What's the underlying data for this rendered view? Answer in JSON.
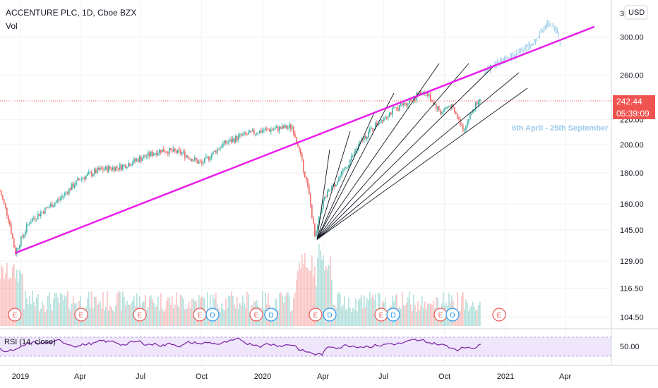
{
  "header": {
    "title": "ACCENTURE PLC, 1D, Cboe BZX",
    "volume_label": "Vol",
    "currency_button": "USD",
    "top_cut_label": "3"
  },
  "price_axis": {
    "ticks": [
      "300.00",
      "260.00",
      "220.00",
      "200.00",
      "180.00",
      "160.00",
      "145.00",
      "129.00",
      "116.50",
      "104.50"
    ],
    "scale": "log",
    "range": [
      100,
      345
    ],
    "last_price": "242.44",
    "countdown": "05:39:09",
    "last_price_color": "#ef5350"
  },
  "time_axis": {
    "ticks": [
      "2019",
      "Apr",
      "Jul",
      "Oct",
      "2020",
      "Apr",
      "Jul",
      "Oct",
      "2021",
      "Apr"
    ]
  },
  "rsi": {
    "label": "RSI (14, close)",
    "level_label": "50.00",
    "line_color": "#7b1fa2",
    "band_color": "#e9def8"
  },
  "annotation": {
    "text": "6th April - 25th September"
  },
  "earnings_markers": {
    "types": [
      "E",
      "E",
      "E",
      "E",
      "D",
      "E",
      "D",
      "E",
      "D",
      "E",
      "D",
      "E",
      "D",
      "E"
    ]
  },
  "colors": {
    "up": "#26a69a",
    "down": "#ef5350",
    "trendline": "#e91ee9",
    "projection": "#9ccbea",
    "fan": "#131722"
  },
  "chart_data": {
    "type": "candlestick",
    "title": "ACCENTURE PLC, 1D, Cboe BZX",
    "price_scale": "log",
    "price_range": [
      100,
      345
    ],
    "x_ticks": [
      "2019",
      "Apr",
      "Jul",
      "Oct",
      "2020",
      "Apr",
      "Jul",
      "Oct",
      "2021",
      "Apr"
    ],
    "price_path": [
      {
        "date": "2018-12-01",
        "price": 168
      },
      {
        "date": "2018-12-15",
        "price": 150
      },
      {
        "date": "2018-12-24",
        "price": 133
      },
      {
        "date": "2019-01-15",
        "price": 150
      },
      {
        "date": "2019-03-01",
        "price": 163
      },
      {
        "date": "2019-04-01",
        "price": 176
      },
      {
        "date": "2019-05-01",
        "price": 182
      },
      {
        "date": "2019-06-01",
        "price": 184
      },
      {
        "date": "2019-07-01",
        "price": 190
      },
      {
        "date": "2019-08-01",
        "price": 196
      },
      {
        "date": "2019-09-01",
        "price": 194
      },
      {
        "date": "2019-10-01",
        "price": 186
      },
      {
        "date": "2019-11-01",
        "price": 200
      },
      {
        "date": "2019-12-01",
        "price": 207
      },
      {
        "date": "2020-01-01",
        "price": 211
      },
      {
        "date": "2020-02-15",
        "price": 214
      },
      {
        "date": "2020-02-25",
        "price": 196
      },
      {
        "date": "2020-03-10",
        "price": 168
      },
      {
        "date": "2020-03-20",
        "price": 140
      },
      {
        "date": "2020-04-01",
        "price": 162
      },
      {
        "date": "2020-05-01",
        "price": 180
      },
      {
        "date": "2020-06-01",
        "price": 205
      },
      {
        "date": "2020-07-01",
        "price": 222
      },
      {
        "date": "2020-08-01",
        "price": 233
      },
      {
        "date": "2020-09-01",
        "price": 245
      },
      {
        "date": "2020-09-25",
        "price": 226
      },
      {
        "date": "2020-10-10",
        "price": 232
      },
      {
        "date": "2020-10-30",
        "price": 212
      },
      {
        "date": "2020-11-25",
        "price": 242
      }
    ],
    "trendline": {
      "from": {
        "date": "2018-12-24",
        "price": 133
      },
      "to": {
        "date": "2021-05-15",
        "price": 312
      }
    },
    "projection_label": "6th April - 25th September",
    "projection_path": [
      {
        "date": "2020-12-01",
        "price": 262
      },
      {
        "date": "2020-12-20",
        "price": 272
      },
      {
        "date": "2021-01-15",
        "price": 280
      },
      {
        "date": "2021-02-15",
        "price": 295
      },
      {
        "date": "2021-03-05",
        "price": 315
      },
      {
        "date": "2021-03-20",
        "price": 308
      },
      {
        "date": "2021-03-25",
        "price": 290
      }
    ],
    "fan_origin": {
      "date": "2020-03-23",
      "price": 140
    },
    "rsi_level": 50
  }
}
